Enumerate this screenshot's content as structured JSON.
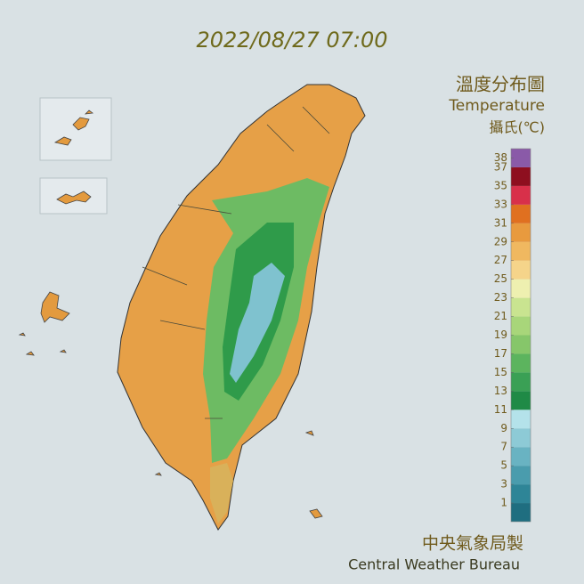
{
  "title": "2022/08/27 07:00",
  "legend": {
    "title_zh": "溫度分布圖",
    "title_en": "Temperature",
    "unit": "攝氏(℃)",
    "lim": [
      -1,
      39
    ],
    "ticks": [
      38,
      37,
      35,
      33,
      31,
      29,
      27,
      25,
      23,
      21,
      19,
      17,
      15,
      13,
      11,
      9,
      7,
      5,
      3,
      1
    ],
    "colors": [
      "#1f6e80",
      "#2e8597",
      "#4a9cad",
      "#69b3c2",
      "#8dcad6",
      "#b4e2ea",
      "#1f8a46",
      "#3aa055",
      "#5cb45e",
      "#86c66a",
      "#a8d67a",
      "#c9e490",
      "#eef0b0",
      "#f5d48a",
      "#f0b860",
      "#e89a3e",
      "#e07020",
      "#d8304a",
      "#8e0f1f",
      "#8a5aa8"
    ]
  },
  "footer": {
    "zh": "中央氣象局製",
    "en": "Central Weather Bureau"
  }
}
